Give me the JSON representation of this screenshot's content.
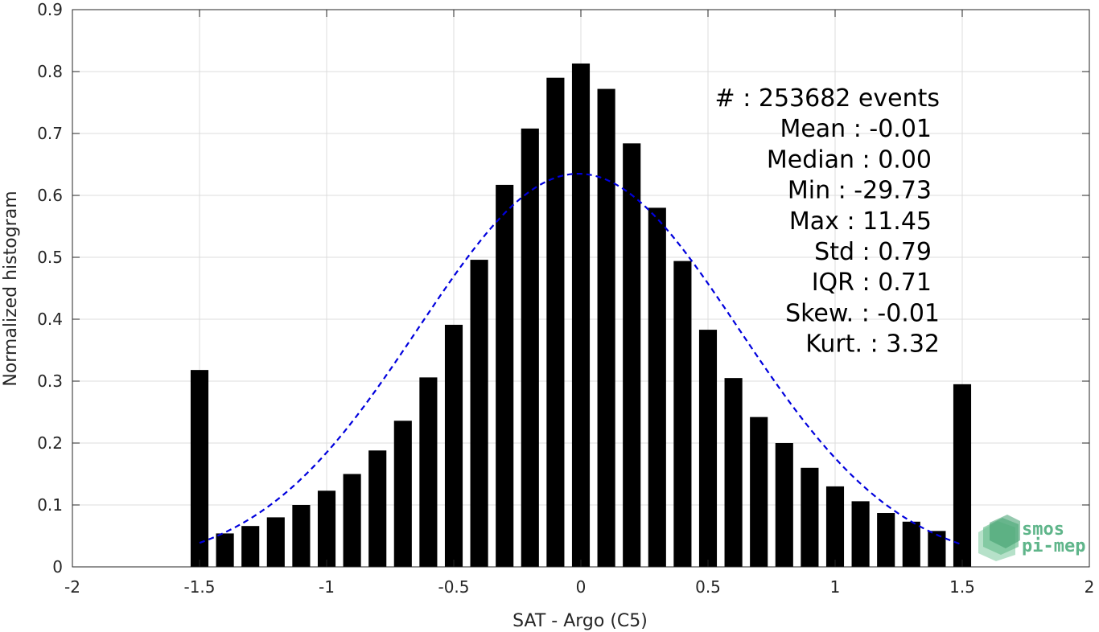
{
  "chart_data": {
    "type": "bar",
    "xlabel": "SAT - Argo (C5)",
    "ylabel": "Normalized histogram",
    "xlim": [
      -2,
      2
    ],
    "ylim": [
      0,
      0.9
    ],
    "xticks": [
      -2,
      -1.5,
      -1,
      -0.5,
      0,
      0.5,
      1,
      1.5,
      2
    ],
    "xtick_labels": [
      "-2",
      "-1.5",
      "-1",
      "-0.5",
      "0",
      "0.5",
      "1",
      "1.5",
      "2"
    ],
    "yticks": [
      0,
      0.1,
      0.2,
      0.3,
      0.4,
      0.5,
      0.6,
      0.7,
      0.8,
      0.9
    ],
    "ytick_labels": [
      "0",
      "0.1",
      "0.2",
      "0.3",
      "0.4",
      "0.5",
      "0.6",
      "0.7",
      "0.8",
      "0.9"
    ],
    "grid": true,
    "bar_width": 0.07,
    "bars": {
      "x": [
        -1.5,
        -1.4,
        -1.3,
        -1.2,
        -1.1,
        -1.0,
        -0.9,
        -0.8,
        -0.7,
        -0.6,
        -0.5,
        -0.4,
        -0.3,
        -0.2,
        -0.1,
        0.0,
        0.1,
        0.2,
        0.3,
        0.4,
        0.5,
        0.6,
        0.7,
        0.8,
        0.9,
        1.0,
        1.1,
        1.2,
        1.3,
        1.4,
        1.5
      ],
      "values": [
        0.318,
        0.054,
        0.066,
        0.08,
        0.1,
        0.123,
        0.15,
        0.188,
        0.236,
        0.306,
        0.391,
        0.496,
        0.617,
        0.708,
        0.79,
        0.813,
        0.772,
        0.684,
        0.58,
        0.494,
        0.383,
        0.305,
        0.242,
        0.2,
        0.16,
        0.13,
        0.106,
        0.087,
        0.073,
        0.058,
        0.295
      ],
      "color": "#000000"
    },
    "fit": {
      "style": "dashed",
      "color": "#0000dd",
      "mean": -0.01,
      "std": 0.63,
      "peak": 0.635,
      "x_range": [
        -1.5,
        1.5
      ]
    },
    "stats_lines": [
      "#  : 253682 events",
      "Mean : -0.01",
      "Median : 0.00",
      "Min : -29.73",
      "Max : 11.45",
      "Std : 0.79",
      "IQR : 0.71",
      "Skew. : -0.01",
      "Kurt. : 3.32"
    ]
  },
  "logo": {
    "line1": "smos",
    "line2": "pi-mep",
    "color": "#5fb58a"
  }
}
